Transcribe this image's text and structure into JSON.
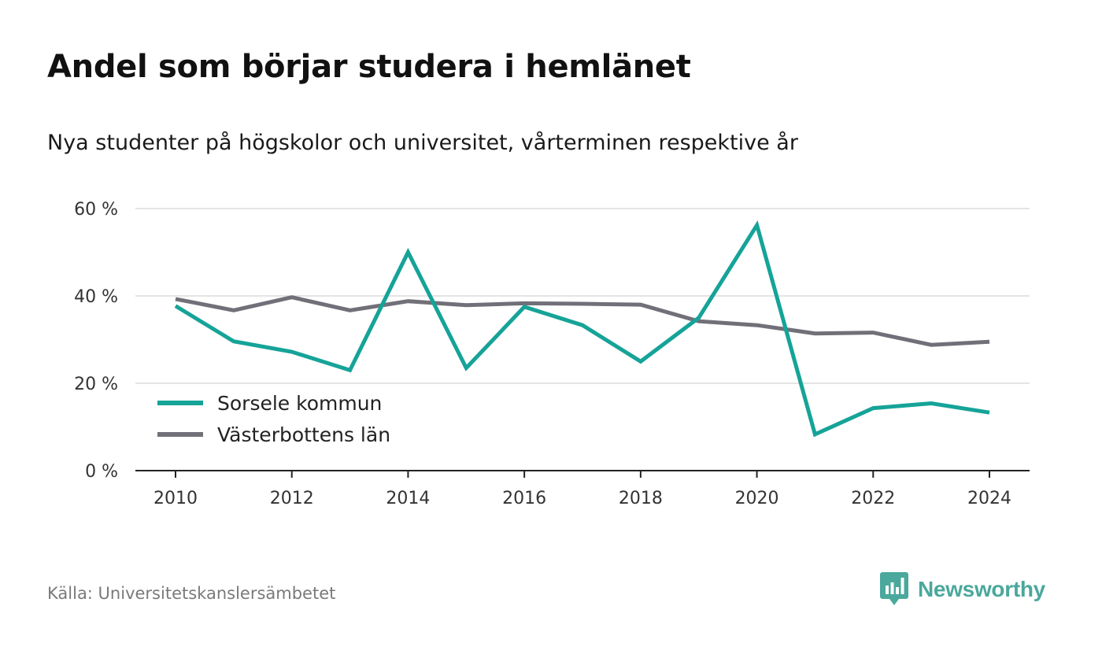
{
  "title": "Andel som börjar studera i hemlänet",
  "subtitle": "Nya studenter på högskolor och universitet, vårterminen respektive år",
  "source": "Källa: Universitetskanslersämbetet",
  "brand": {
    "name": "Newsworthy",
    "icon": "newsworthy-logo-icon",
    "color": "#4aa89c"
  },
  "chart_data": {
    "type": "line",
    "x": [
      2010,
      2011,
      2012,
      2013,
      2014,
      2015,
      2016,
      2017,
      2018,
      2019,
      2020,
      2021,
      2022,
      2023,
      2024
    ],
    "x_ticks": [
      2010,
      2012,
      2014,
      2016,
      2018,
      2020,
      2022,
      2024
    ],
    "x_tick_labels": [
      "2010",
      "2012",
      "2014",
      "2016",
      "2018",
      "2020",
      "2022",
      "2024"
    ],
    "ylim": [
      0,
      60
    ],
    "y_ticks": [
      0,
      20,
      40,
      60
    ],
    "y_tick_labels": [
      "0 %",
      "20 %",
      "40 %",
      "60 %"
    ],
    "grid": true,
    "legend_position": "bottom-left",
    "xlabel": "",
    "ylabel": "",
    "series": [
      {
        "name": "Sorsele kommun",
        "color": "#16a398",
        "values": [
          37.7,
          29.6,
          27.2,
          23.0,
          50.0,
          23.5,
          37.5,
          33.3,
          25.0,
          35.0,
          56.2,
          8.3,
          14.3,
          15.4,
          13.3
        ]
      },
      {
        "name": "Västerbottens län",
        "color": "#717079",
        "values": [
          39.3,
          36.7,
          39.7,
          36.7,
          38.8,
          37.9,
          38.3,
          38.2,
          38.0,
          34.2,
          33.3,
          31.4,
          31.6,
          28.8,
          29.5
        ]
      }
    ]
  }
}
